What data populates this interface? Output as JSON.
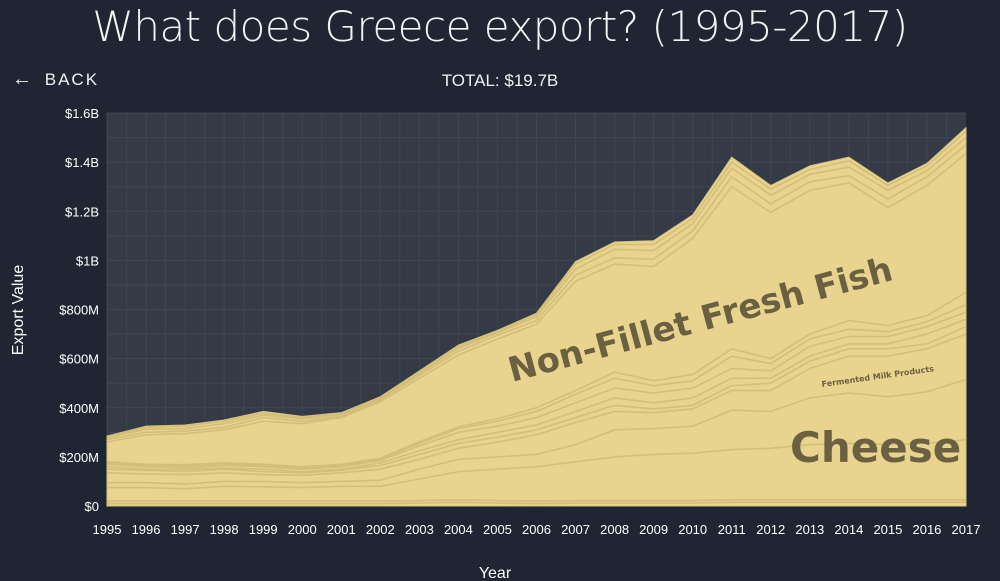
{
  "header": {
    "title": "What does Greece export? (1995-2017)",
    "back_label": "BACK",
    "back_icon": "left-arrow-icon",
    "total": "TOTAL: $19.7B"
  },
  "colors": {
    "background": "#1f2533",
    "plot_background": "#343b47",
    "grid": "#3f4653",
    "area_fill": "#e8d48e",
    "band_line": "#d2bd78",
    "label_text": "#6b6040"
  },
  "chart_data": {
    "type": "area",
    "stacked": true,
    "xlabel": "Year",
    "ylabel": "Export Value",
    "ylim": [
      0,
      1600
    ],
    "x": [
      "1995",
      "1996",
      "1997",
      "1998",
      "1999",
      "2000",
      "2001",
      "2002",
      "2003",
      "2004",
      "2005",
      "2006",
      "2007",
      "2008",
      "2009",
      "2010",
      "2011",
      "2012",
      "2013",
      "2014",
      "2015",
      "2016",
      "2017"
    ],
    "yticks": [
      {
        "value": 0,
        "label": "$0"
      },
      {
        "value": 200,
        "label": "$200M"
      },
      {
        "value": 400,
        "label": "$400M"
      },
      {
        "value": 600,
        "label": "$600M"
      },
      {
        "value": 800,
        "label": "$800M"
      },
      {
        "value": 1000,
        "label": "$1B"
      },
      {
        "value": 1200,
        "label": "$1.2B"
      },
      {
        "value": 1400,
        "label": "$1.4B"
      },
      {
        "value": 1600,
        "label": "$1.6B"
      }
    ],
    "grid": true,
    "total_values": [
      285,
      325,
      330,
      350,
      385,
      365,
      380,
      445,
      550,
      655,
      715,
      785,
      995,
      1075,
      1080,
      1185,
      1420,
      1305,
      1385,
      1420,
      1315,
      1395,
      1540
    ],
    "band_boundaries": [
      [
        10,
        10,
        10,
        10,
        10,
        10,
        10,
        10,
        12,
        15,
        12,
        10,
        12,
        12,
        12,
        12,
        15,
        15,
        15,
        15,
        15,
        15,
        15
      ],
      [
        20,
        20,
        20,
        20,
        20,
        20,
        20,
        20,
        22,
        25,
        22,
        20,
        22,
        22,
        22,
        22,
        25,
        25,
        25,
        25,
        25,
        25,
        25
      ],
      [
        75,
        75,
        70,
        80,
        78,
        75,
        80,
        80,
        110,
        140,
        150,
        160,
        180,
        200,
        210,
        215,
        230,
        235,
        250,
        255,
        250,
        255,
        270
      ],
      [
        95,
        95,
        90,
        100,
        100,
        95,
        100,
        105,
        150,
        190,
        200,
        210,
        250,
        310,
        315,
        325,
        390,
        385,
        440,
        460,
        445,
        465,
        515
      ],
      [
        135,
        130,
        128,
        135,
        128,
        125,
        135,
        150,
        190,
        235,
        260,
        290,
        340,
        385,
        380,
        395,
        470,
        470,
        560,
        610,
        610,
        640,
        700
      ],
      [
        150,
        145,
        140,
        150,
        140,
        135,
        145,
        165,
        210,
        255,
        280,
        310,
        360,
        410,
        395,
        410,
        490,
        500,
        590,
        640,
        640,
        660,
        730
      ],
      [
        160,
        150,
        148,
        155,
        150,
        140,
        150,
        175,
        225,
        270,
        300,
        330,
        385,
        440,
        420,
        440,
        520,
        520,
        610,
        660,
        660,
        700,
        760
      ],
      [
        170,
        160,
        155,
        165,
        160,
        150,
        160,
        185,
        245,
        300,
        325,
        360,
        420,
        480,
        460,
        480,
        560,
        550,
        650,
        690,
        690,
        730,
        790
      ],
      [
        175,
        165,
        162,
        172,
        165,
        155,
        165,
        190,
        255,
        315,
        345,
        385,
        455,
        520,
        490,
        510,
        610,
        580,
        680,
        720,
        710,
        750,
        820
      ],
      [
        180,
        170,
        168,
        176,
        170,
        160,
        170,
        195,
        262,
        322,
        355,
        400,
        470,
        545,
        510,
        535,
        640,
        600,
        700,
        755,
        735,
        775,
        870
      ],
      [
        260,
        290,
        295,
        310,
        345,
        335,
        360,
        425,
        520,
        615,
        680,
        740,
        915,
        985,
        975,
        1090,
        1300,
        1195,
        1285,
        1315,
        1215,
        1305,
        1435
      ],
      [
        270,
        300,
        305,
        320,
        360,
        345,
        365,
        432,
        532,
        630,
        695,
        755,
        940,
        1010,
        1005,
        1120,
        1340,
        1230,
        1320,
        1345,
        1250,
        1340,
        1470
      ],
      [
        278,
        312,
        315,
        335,
        370,
        355,
        372,
        438,
        540,
        642,
        705,
        770,
        965,
        1045,
        1040,
        1150,
        1375,
        1265,
        1350,
        1380,
        1285,
        1365,
        1500
      ],
      [
        282,
        320,
        325,
        345,
        378,
        360,
        376,
        442,
        546,
        650,
        710,
        780,
        985,
        1065,
        1065,
        1170,
        1400,
        1290,
        1370,
        1405,
        1305,
        1385,
        1525
      ]
    ],
    "area_labels": {
      "cheese": "Cheese",
      "fermented_milk": "Fermented Milk Products",
      "fish": "Non-Fillet Fresh Fish"
    }
  }
}
